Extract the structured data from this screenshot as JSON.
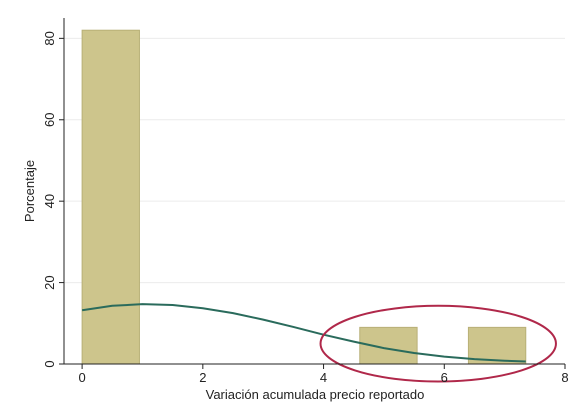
{
  "chart_data": {
    "type": "bar",
    "xlabel": "Variación acumulada precio reportado",
    "ylabel": "Porcentaje",
    "xlim": [
      -0.3,
      8.0
    ],
    "ylim": [
      0,
      85
    ],
    "xticks": [
      0,
      2,
      4,
      6,
      8
    ],
    "yticks": [
      0,
      20,
      40,
      60,
      80
    ],
    "xtick_labels": [
      "0",
      "2",
      "4",
      "6",
      "8"
    ],
    "ytick_labels": [
      "0",
      "20",
      "40",
      "60",
      "80"
    ],
    "grid": "horizontal",
    "bars": [
      {
        "x0": 0.0,
        "x1": 0.95,
        "value": 82
      },
      {
        "x0": 4.6,
        "x1": 5.55,
        "value": 9
      },
      {
        "x0": 6.4,
        "x1": 7.35,
        "value": 9
      }
    ],
    "density_curve": {
      "x": [
        0.0,
        0.5,
        1.0,
        1.5,
        2.0,
        2.5,
        3.0,
        3.5,
        4.0,
        4.5,
        5.0,
        5.5,
        6.0,
        6.5,
        7.0,
        7.35
      ],
      "y": [
        13.2,
        14.3,
        14.7,
        14.5,
        13.7,
        12.5,
        10.9,
        9.1,
        7.2,
        5.5,
        3.9,
        2.7,
        1.8,
        1.2,
        0.8,
        0.6
      ]
    },
    "annotation": {
      "type": "ellipse",
      "cx": 5.9,
      "cy": 5.0,
      "rx": 1.95,
      "ry": 9.3
    },
    "colors": {
      "bar_fill": "#cdc58c",
      "bar_stroke": "#b8b077",
      "curve": "#2a6b5c",
      "ellipse": "#b0284a",
      "grid": "#ececec",
      "axis": "#222222"
    }
  }
}
